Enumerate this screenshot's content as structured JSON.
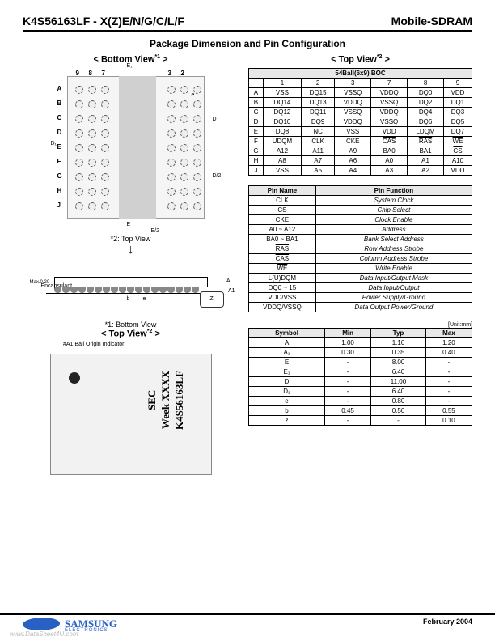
{
  "header": {
    "part": "K4S56163LF - X(Z)E/N/G/C/L/F",
    "type": "Mobile-SDRAM"
  },
  "title": "Package Dimension and Pin Configuration",
  "views": {
    "bottom": "< Bottom View",
    "bottom_sup": "*1",
    "top": "< Top View",
    "top_sup": "*2",
    "note_top": "*2: Top View",
    "note_bottom": "*1: Bottom View"
  },
  "bga": {
    "rows": [
      "A",
      "B",
      "C",
      "D",
      "E",
      "F",
      "G",
      "H",
      "J"
    ],
    "cols_left": [
      "9",
      "8",
      "7"
    ],
    "cols_right": [
      "3",
      "2"
    ],
    "dims": {
      "E1": "E₁",
      "E": "E",
      "E2": "E/2",
      "D": "D",
      "D1": "D₁",
      "D2": "D/2",
      "e": "e"
    }
  },
  "side": {
    "encap": "Encapsulant",
    "maxz": "Max.0.20",
    "labels": {
      "A": "A",
      "A1": "A1",
      "b": "b",
      "e": "e",
      "z": "Z"
    }
  },
  "mark": {
    "a1": "#A1 Ball Origin Indicator",
    "line1": "SEC",
    "line2": "Week XXXX",
    "line3": "K4S56163LF"
  },
  "boc": {
    "title": "54Ball(6x9) BOC",
    "cols": [
      "",
      "1",
      "2",
      "3",
      "7",
      "8",
      "9"
    ],
    "rows": [
      [
        "A",
        "VSS",
        "DQ15",
        "VSSQ",
        "VDDQ",
        "DQ0",
        "VDD"
      ],
      [
        "B",
        "DQ14",
        "DQ13",
        "VDDQ",
        "VSSQ",
        "DQ2",
        "DQ1"
      ],
      [
        "C",
        "DQ12",
        "DQ11",
        "VSSQ",
        "VDDQ",
        "DQ4",
        "DQ3"
      ],
      [
        "D",
        "DQ10",
        "DQ9",
        "VDDQ",
        "VSSQ",
        "DQ6",
        "DQ5"
      ],
      [
        "E",
        "DQ8",
        "NC",
        "VSS",
        "VDD",
        "LDQM",
        "DQ7"
      ],
      [
        "F",
        "UDQM",
        "CLK",
        "CKE",
        "CAS̅",
        "RAS̅",
        "WE̅"
      ],
      [
        "G",
        "A12",
        "A11",
        "A9",
        "BA0",
        "BA1",
        "CS̅"
      ],
      [
        "H",
        "A8",
        "A7",
        "A6",
        "A0",
        "A1",
        "A10"
      ],
      [
        "J",
        "VSS",
        "A5",
        "A4",
        "A3",
        "A2",
        "VDD"
      ]
    ]
  },
  "pins": {
    "head": [
      "Pin Name",
      "Pin Function"
    ],
    "rows": [
      [
        "CLK",
        "System Clock"
      ],
      [
        "CS̅",
        "Chip Select"
      ],
      [
        "CKE",
        "Clock Enable"
      ],
      [
        "A0 ~ A12",
        "Address"
      ],
      [
        "BA0 ~ BA1",
        "Bank Select Address"
      ],
      [
        "RAS̅",
        "Row Address Strobe"
      ],
      [
        "CAS̅",
        "Column Address Strobe"
      ],
      [
        "WE̅",
        "Write Enable"
      ],
      [
        "L(U)DQM",
        "Data Input/Output Mask"
      ],
      [
        "DQ0 ~ 15",
        "Data Input/Output"
      ],
      [
        "VDD/VSS",
        "Power Supply/Ground"
      ],
      [
        "VDDQ/VSSQ",
        "Data Output Power/Ground"
      ]
    ]
  },
  "dims": {
    "unit": "[Unit:mm]",
    "head": [
      "Symbol",
      "Min",
      "Typ",
      "Max"
    ],
    "rows": [
      [
        "A",
        "1.00",
        "1.10",
        "1.20"
      ],
      [
        "A₁",
        "0.30",
        "0.35",
        "0.40"
      ],
      [
        "E",
        "-",
        "8.00",
        "-"
      ],
      [
        "E₁",
        "-",
        "6.40",
        "-"
      ],
      [
        "D",
        "-",
        "11.00",
        "-"
      ],
      [
        "D₁",
        "-",
        "6.40",
        "-"
      ],
      [
        "e",
        "-",
        "0.80",
        "-"
      ],
      [
        "b",
        "0.45",
        "0.50",
        "0.55"
      ],
      [
        "z",
        "-",
        "-",
        "0.10"
      ]
    ]
  },
  "footer": {
    "brand": "SAMSUNG",
    "sub": "ELECTRONICS",
    "date": "February 2004"
  },
  "watermark": "www.DataSheet4U.com"
}
